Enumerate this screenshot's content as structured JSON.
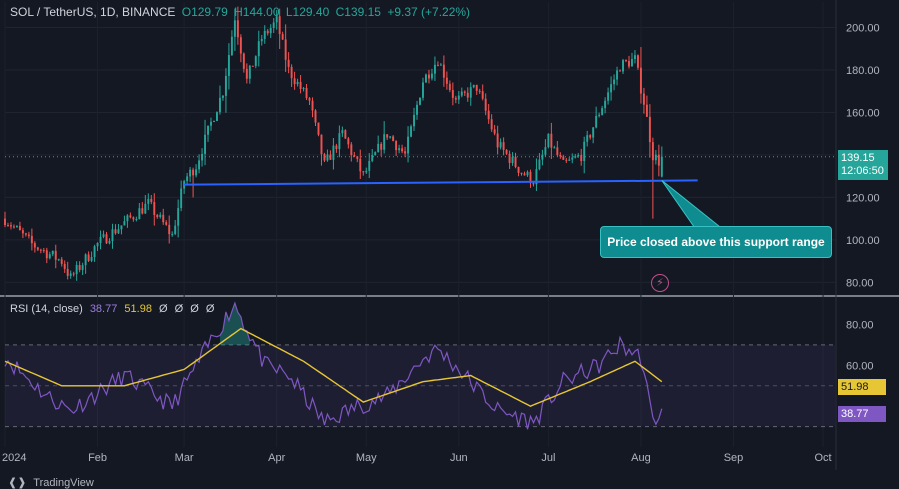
{
  "header": {
    "symbol": "SOL / TetherUS, 1D, BINANCE",
    "open": "O129.79",
    "high": "H144.00",
    "low": "L129.40",
    "close": "C139.15",
    "change": "+9.37 (+7.22%)"
  },
  "price_tag": {
    "price": "139.15",
    "countdown": "12:06:50"
  },
  "annotation": "Price closed above this support range",
  "rsi_header": {
    "label": "RSI (14, close)",
    "rsi": "38.77",
    "ma": "51.98",
    "extras": [
      "Ø",
      "Ø",
      "Ø",
      "Ø"
    ]
  },
  "rsi_tags": {
    "ma": "51.98",
    "rsi": "38.77"
  },
  "branding": "TradingView",
  "colors": {
    "up": "#26a69a",
    "down": "#ef5350",
    "support": "#2962ff",
    "rsi_line": "#7e57c2",
    "rsi_ma": "#e6c634",
    "callout": "#0f8c8f"
  },
  "icons": {
    "logo": "tradingview-logo-icon",
    "alert": "lightning-bolt-icon"
  },
  "chart_data": [
    {
      "type": "candlestick",
      "x_range": [
        "2024-01-01",
        "2024-10-05"
      ],
      "ylim": [
        75,
        212
      ],
      "y_ticks": [
        "200.00",
        "180.00",
        "160.00",
        "140.00",
        "120.00",
        "100.00",
        "80.00"
      ],
      "x_ticks": [
        "2024",
        "Feb",
        "Mar",
        "Apr",
        "May",
        "Jun",
        "Jul",
        "Aug",
        "Sep",
        "Oct"
      ],
      "support_line": {
        "start": [
          "2024-03-01",
          126
        ],
        "end": [
          "2024-08-20",
          128
        ]
      },
      "grid": true,
      "control_points": [
        [
          "2024-01-01",
          110
        ],
        [
          "2024-01-10",
          98
        ],
        [
          "2024-01-20",
          90
        ],
        [
          "2024-01-23",
          82
        ],
        [
          "2024-02-01",
          98
        ],
        [
          "2024-02-10",
          108
        ],
        [
          "2024-02-18",
          117
        ],
        [
          "2024-02-26",
          102
        ],
        [
          "2024-03-01",
          128
        ],
        [
          "2024-03-05",
          135
        ],
        [
          "2024-03-10",
          155
        ],
        [
          "2024-03-14",
          170
        ],
        [
          "2024-03-18",
          205
        ],
        [
          "2024-03-22",
          175
        ],
        [
          "2024-03-27",
          195
        ],
        [
          "2024-04-01",
          203
        ],
        [
          "2024-04-05",
          180
        ],
        [
          "2024-04-12",
          165
        ],
        [
          "2024-04-17",
          135
        ],
        [
          "2024-04-23",
          150
        ],
        [
          "2024-04-30",
          130
        ],
        [
          "2024-05-08",
          150
        ],
        [
          "2024-05-14",
          140
        ],
        [
          "2024-05-20",
          175
        ],
        [
          "2024-05-25",
          185
        ],
        [
          "2024-05-31",
          165
        ],
        [
          "2024-06-07",
          172
        ],
        [
          "2024-06-14",
          145
        ],
        [
          "2024-06-22",
          132
        ],
        [
          "2024-06-26",
          128
        ],
        [
          "2024-07-01",
          147
        ],
        [
          "2024-07-06",
          135
        ],
        [
          "2024-07-12",
          140
        ],
        [
          "2024-07-18",
          160
        ],
        [
          "2024-07-25",
          182
        ],
        [
          "2024-07-30",
          185
        ],
        [
          "2024-08-02",
          165
        ],
        [
          "2024-08-05",
          140
        ],
        [
          "2024-08-07",
          137
        ],
        [
          "2024-08-08",
          139.15
        ]
      ],
      "last_candle": {
        "open": 129.79,
        "high": 144.0,
        "low": 129.4,
        "close": 139.15
      }
    },
    {
      "type": "line",
      "title": "RSI (14, close)",
      "ylim": [
        20,
        92
      ],
      "y_ticks": [
        "80.00",
        "60.00"
      ],
      "bands": {
        "upper": 70,
        "middle": 50,
        "lower": 30
      },
      "series": [
        {
          "values": [
            [
              "2024-01-01",
              64
            ],
            [
              "2024-01-15",
              45
            ],
            [
              "2024-01-23",
              38
            ],
            [
              "2024-02-10",
              55
            ],
            [
              "2024-02-26",
              40
            ],
            [
              "2024-03-10",
              72
            ],
            [
              "2024-03-18",
              90
            ],
            [
              "2024-03-28",
              60
            ],
            [
              "2024-04-05",
              55
            ],
            [
              "2024-04-17",
              32
            ],
            [
              "2024-04-28",
              40
            ],
            [
              "2024-05-08",
              45
            ],
            [
              "2024-05-20",
              63
            ],
            [
              "2024-05-25",
              68
            ],
            [
              "2024-06-01",
              58
            ],
            [
              "2024-06-14",
              38
            ],
            [
              "2024-06-26",
              32
            ],
            [
              "2024-07-06",
              52
            ],
            [
              "2024-07-18",
              60
            ],
            [
              "2024-07-25",
              70
            ],
            [
              "2024-08-01",
              64
            ],
            [
              "2024-08-05",
              32
            ],
            [
              "2024-08-08",
              38.77
            ]
          ]
        },
        {
          "values": [
            [
              "2024-01-01",
              62
            ],
            [
              "2024-01-20",
              50
            ],
            [
              "2024-02-10",
              50
            ],
            [
              "2024-03-01",
              58
            ],
            [
              "2024-03-20",
              78
            ],
            [
              "2024-04-10",
              62
            ],
            [
              "2024-04-30",
              42
            ],
            [
              "2024-05-20",
              52
            ],
            [
              "2024-06-05",
              55
            ],
            [
              "2024-06-25",
              40
            ],
            [
              "2024-07-15",
              52
            ],
            [
              "2024-07-30",
              62
            ],
            [
              "2024-08-08",
              51.98
            ]
          ]
        }
      ]
    }
  ]
}
